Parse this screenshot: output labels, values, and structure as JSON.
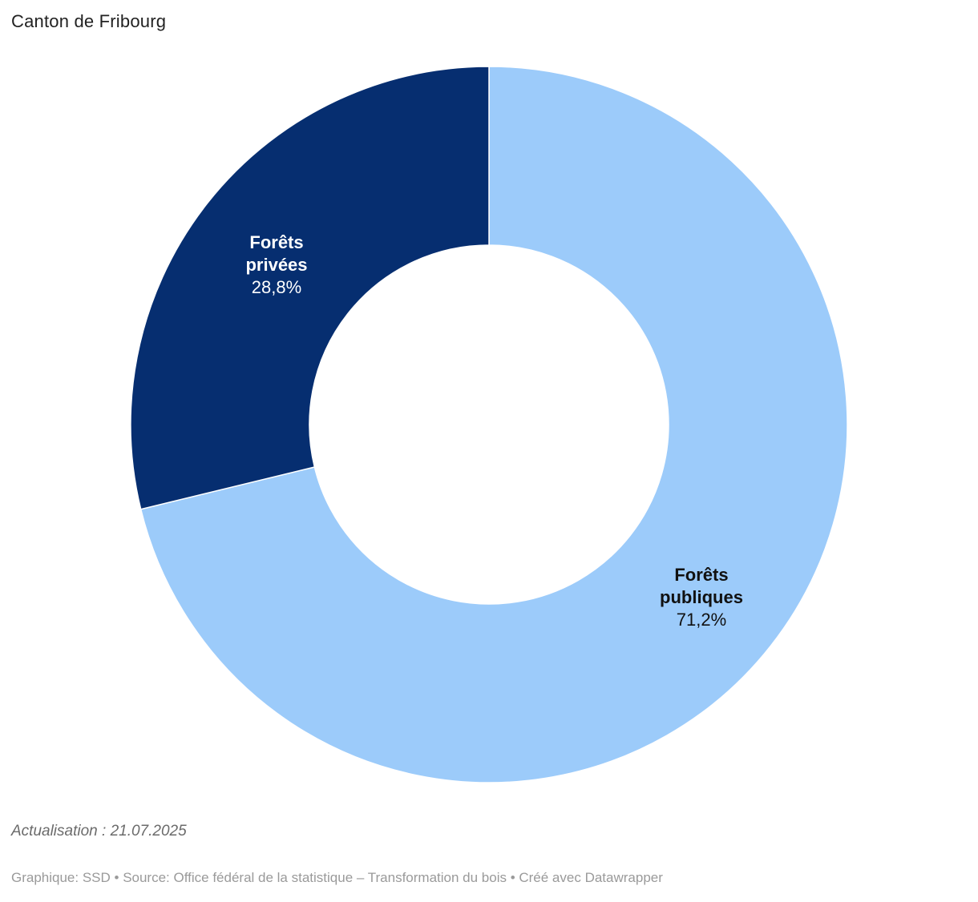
{
  "header": {
    "title": "Canton de Fribourg"
  },
  "chart_data": {
    "type": "pie",
    "subtype": "donut",
    "title": "Canton de Fribourg",
    "start_angle_deg": 0,
    "direction": "clockwise",
    "inner_radius_ratio": 0.5,
    "legend": "none",
    "separator_color": "#ffffff",
    "slices": [
      {
        "label": "Forêts publiques",
        "label_lines": [
          "Forêts",
          "publiques"
        ],
        "value": 71.2,
        "display_value": "71,2%",
        "color": "#9ccbfa",
        "text_color": "#111111"
      },
      {
        "label": "Forêts privées",
        "label_lines": [
          "Forêts",
          "privées"
        ],
        "value": 28.8,
        "display_value": "28,8%",
        "color": "#062e70",
        "text_color": "#ffffff"
      }
    ]
  },
  "footer": {
    "update_note": "Actualisation : 21.07.2025",
    "attribution": "Graphique: SSD • Source: Office fédéral de la statistique – Transformation du bois • Créé avec Datawrapper"
  }
}
